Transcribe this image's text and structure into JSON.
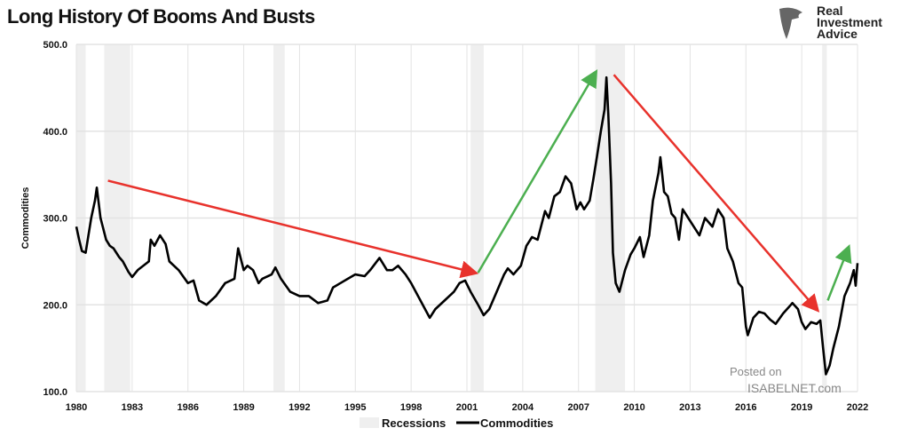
{
  "logo": {
    "line1": "Real",
    "line2": "Investment",
    "line3": "Advice"
  },
  "watermark": {
    "line1": "Posted on",
    "line2": "ISABELNET.com"
  },
  "chart_data": {
    "type": "line",
    "title": "Long History Of Booms And Busts",
    "xlabel": "",
    "ylabel": "Commodities",
    "xlim": [
      1980,
      2022
    ],
    "ylim": [
      100,
      500
    ],
    "xticks": [
      1980,
      1983,
      1986,
      1989,
      1992,
      1995,
      1998,
      2001,
      2004,
      2007,
      2010,
      2013,
      2016,
      2019,
      2022
    ],
    "yticks": [
      "100.0",
      "200.0",
      "300.0",
      "400.0",
      "500.0"
    ],
    "grid": true,
    "legend": {
      "placement": "bottom-center",
      "entries": [
        "Recessions",
        "Commodities"
      ]
    },
    "recessions": [
      [
        1980.0,
        1980.5
      ],
      [
        1981.5,
        1982.9
      ],
      [
        1990.6,
        1991.2
      ],
      [
        2001.2,
        2001.9
      ],
      [
        2007.9,
        2009.5
      ],
      [
        2020.1,
        2020.35
      ]
    ],
    "series": [
      {
        "name": "Commodities",
        "color": "#000000",
        "points": [
          [
            1980.0,
            290
          ],
          [
            1980.15,
            275
          ],
          [
            1980.3,
            262
          ],
          [
            1980.5,
            260
          ],
          [
            1980.8,
            300
          ],
          [
            1981.0,
            320
          ],
          [
            1981.1,
            335
          ],
          [
            1981.3,
            300
          ],
          [
            1981.6,
            275
          ],
          [
            1981.8,
            268
          ],
          [
            1982.0,
            265
          ],
          [
            1982.3,
            255
          ],
          [
            1982.5,
            250
          ],
          [
            1982.8,
            238
          ],
          [
            1983.0,
            232
          ],
          [
            1983.3,
            240
          ],
          [
            1983.6,
            245
          ],
          [
            1983.9,
            250
          ],
          [
            1984.0,
            275
          ],
          [
            1984.2,
            268
          ],
          [
            1984.5,
            280
          ],
          [
            1984.8,
            270
          ],
          [
            1985.0,
            250
          ],
          [
            1985.5,
            240
          ],
          [
            1986.0,
            225
          ],
          [
            1986.3,
            228
          ],
          [
            1986.6,
            205
          ],
          [
            1987.0,
            200
          ],
          [
            1987.5,
            210
          ],
          [
            1988.0,
            225
          ],
          [
            1988.5,
            230
          ],
          [
            1988.7,
            265
          ],
          [
            1989.0,
            240
          ],
          [
            1989.2,
            245
          ],
          [
            1989.5,
            240
          ],
          [
            1989.8,
            225
          ],
          [
            1990.0,
            230
          ],
          [
            1990.5,
            235
          ],
          [
            1990.7,
            243
          ],
          [
            1991.0,
            230
          ],
          [
            1991.5,
            215
          ],
          [
            1992.0,
            210
          ],
          [
            1992.5,
            210
          ],
          [
            1993.0,
            202
          ],
          [
            1993.5,
            205
          ],
          [
            1993.8,
            220
          ],
          [
            1994.2,
            225
          ],
          [
            1994.6,
            230
          ],
          [
            1995.0,
            235
          ],
          [
            1995.5,
            233
          ],
          [
            1995.8,
            240
          ],
          [
            1996.3,
            254
          ],
          [
            1996.7,
            240
          ],
          [
            1997.0,
            240
          ],
          [
            1997.3,
            245
          ],
          [
            1997.7,
            235
          ],
          [
            1998.0,
            225
          ],
          [
            1998.5,
            205
          ],
          [
            1999.0,
            185
          ],
          [
            1999.3,
            195
          ],
          [
            1999.8,
            205
          ],
          [
            2000.3,
            215
          ],
          [
            2000.6,
            225
          ],
          [
            2000.9,
            228
          ],
          [
            2001.2,
            215
          ],
          [
            2001.6,
            200
          ],
          [
            2001.9,
            188
          ],
          [
            2002.2,
            195
          ],
          [
            2002.6,
            215
          ],
          [
            2003.0,
            235
          ],
          [
            2003.2,
            242
          ],
          [
            2003.5,
            235
          ],
          [
            2003.9,
            245
          ],
          [
            2004.2,
            268
          ],
          [
            2004.5,
            278
          ],
          [
            2004.8,
            275
          ],
          [
            2005.2,
            308
          ],
          [
            2005.4,
            300
          ],
          [
            2005.7,
            325
          ],
          [
            2006.0,
            330
          ],
          [
            2006.3,
            348
          ],
          [
            2006.6,
            340
          ],
          [
            2006.9,
            310
          ],
          [
            2007.1,
            318
          ],
          [
            2007.3,
            310
          ],
          [
            2007.6,
            320
          ],
          [
            2007.8,
            345
          ],
          [
            2008.0,
            372
          ],
          [
            2008.2,
            400
          ],
          [
            2008.4,
            425
          ],
          [
            2008.5,
            462
          ],
          [
            2008.6,
            420
          ],
          [
            2008.75,
            340
          ],
          [
            2008.85,
            260
          ],
          [
            2009.0,
            225
          ],
          [
            2009.2,
            215
          ],
          [
            2009.5,
            240
          ],
          [
            2009.8,
            258
          ],
          [
            2010.0,
            265
          ],
          [
            2010.3,
            278
          ],
          [
            2010.5,
            255
          ],
          [
            2010.8,
            280
          ],
          [
            2011.0,
            320
          ],
          [
            2011.3,
            352
          ],
          [
            2011.4,
            370
          ],
          [
            2011.6,
            330
          ],
          [
            2011.8,
            325
          ],
          [
            2012.0,
            305
          ],
          [
            2012.2,
            300
          ],
          [
            2012.4,
            275
          ],
          [
            2012.6,
            310
          ],
          [
            2012.9,
            300
          ],
          [
            2013.2,
            290
          ],
          [
            2013.5,
            280
          ],
          [
            2013.8,
            300
          ],
          [
            2014.2,
            290
          ],
          [
            2014.5,
            310
          ],
          [
            2014.8,
            300
          ],
          [
            2015.0,
            265
          ],
          [
            2015.3,
            250
          ],
          [
            2015.6,
            225
          ],
          [
            2015.8,
            220
          ],
          [
            2016.0,
            175
          ],
          [
            2016.1,
            165
          ],
          [
            2016.4,
            185
          ],
          [
            2016.7,
            192
          ],
          [
            2017.0,
            190
          ],
          [
            2017.3,
            183
          ],
          [
            2017.6,
            178
          ],
          [
            2018.0,
            190
          ],
          [
            2018.5,
            202
          ],
          [
            2018.8,
            195
          ],
          [
            2019.0,
            180
          ],
          [
            2019.2,
            172
          ],
          [
            2019.5,
            180
          ],
          [
            2019.8,
            178
          ],
          [
            2020.0,
            182
          ],
          [
            2020.15,
            150
          ],
          [
            2020.3,
            120
          ],
          [
            2020.5,
            130
          ],
          [
            2020.7,
            150
          ],
          [
            2021.0,
            175
          ],
          [
            2021.3,
            210
          ],
          [
            2021.6,
            225
          ],
          [
            2021.8,
            240
          ],
          [
            2021.9,
            222
          ],
          [
            2022.0,
            248
          ]
        ]
      }
    ],
    "annotations": [
      {
        "type": "arrow",
        "color": "#e8322c",
        "from": [
          1981.7,
          343
        ],
        "to": [
          2001.4,
          237
        ]
      },
      {
        "type": "arrow",
        "color": "#4caf50",
        "from": [
          2001.6,
          237
        ],
        "to": [
          2007.9,
          467
        ]
      },
      {
        "type": "arrow",
        "color": "#e8322c",
        "from": [
          2008.9,
          465
        ],
        "to": [
          2019.8,
          195
        ]
      },
      {
        "type": "arrow",
        "color": "#4caf50",
        "from": [
          2020.4,
          205
        ],
        "to": [
          2021.5,
          265
        ]
      }
    ]
  }
}
